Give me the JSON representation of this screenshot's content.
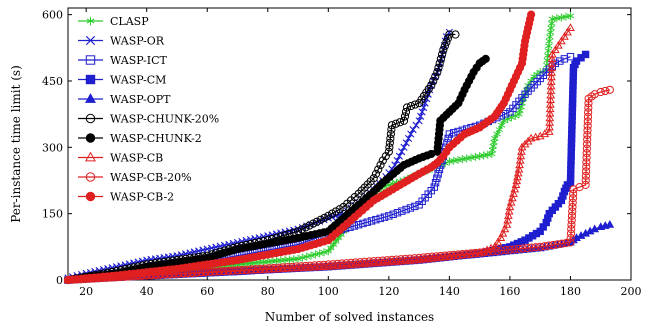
{
  "chart_data": {
    "type": "line",
    "xlabel": "Number of solved instances",
    "ylabel": "Per-instance time limit (s)",
    "xlim": [
      14,
      200
    ],
    "ylim": [
      0,
      615
    ],
    "xticks": [
      20,
      40,
      60,
      80,
      100,
      120,
      140,
      160,
      180,
      200
    ],
    "yticks": [
      0,
      150,
      300,
      450,
      600
    ],
    "grid": false,
    "legend_position": "top-left",
    "series": [
      {
        "name": "CLASP",
        "color": "#2ecc2e",
        "marker": "star",
        "fill": false,
        "points": [
          [
            14,
            0
          ],
          [
            30,
            10
          ],
          [
            50,
            22
          ],
          [
            70,
            35
          ],
          [
            90,
            48
          ],
          [
            100,
            65
          ],
          [
            105,
            110
          ],
          [
            110,
            170
          ],
          [
            115,
            200
          ],
          [
            120,
            215
          ],
          [
            125,
            225
          ],
          [
            130,
            240
          ],
          [
            140,
            268
          ],
          [
            150,
            280
          ],
          [
            154,
            285
          ],
          [
            155,
            320
          ],
          [
            158,
            360
          ],
          [
            163,
            375
          ],
          [
            164,
            400
          ],
          [
            166,
            440
          ],
          [
            168,
            460
          ],
          [
            170,
            470
          ],
          [
            172,
            475
          ],
          [
            173,
            540
          ],
          [
            174,
            590
          ],
          [
            180,
            597
          ]
        ]
      },
      {
        "name": "WASP-OR",
        "color": "#1f1fcf",
        "marker": "x",
        "fill": false,
        "points": [
          [
            14,
            5
          ],
          [
            20,
            15
          ],
          [
            30,
            30
          ],
          [
            40,
            45
          ],
          [
            50,
            55
          ],
          [
            60,
            70
          ],
          [
            70,
            85
          ],
          [
            80,
            100
          ],
          [
            90,
            115
          ],
          [
            100,
            140
          ],
          [
            105,
            150
          ],
          [
            110,
            175
          ],
          [
            115,
            205
          ],
          [
            118,
            225
          ],
          [
            122,
            260
          ],
          [
            125,
            300
          ],
          [
            128,
            340
          ],
          [
            130,
            360
          ],
          [
            132,
            400
          ],
          [
            134,
            440
          ],
          [
            136,
            470
          ],
          [
            137,
            490
          ],
          [
            138,
            520
          ],
          [
            139,
            550
          ],
          [
            140,
            560
          ]
        ]
      },
      {
        "name": "WASP-ICT",
        "color": "#1f1fcf",
        "marker": "square",
        "fill": false,
        "points": [
          [
            14,
            0
          ],
          [
            30,
            15
          ],
          [
            50,
            30
          ],
          [
            70,
            55
          ],
          [
            90,
            80
          ],
          [
            100,
            105
          ],
          [
            110,
            125
          ],
          [
            120,
            145
          ],
          [
            130,
            170
          ],
          [
            135,
            210
          ],
          [
            138,
            280
          ],
          [
            140,
            330
          ],
          [
            150,
            350
          ],
          [
            160,
            380
          ],
          [
            165,
            420
          ],
          [
            172,
            470
          ],
          [
            175,
            490
          ],
          [
            178,
            500
          ],
          [
            180,
            505
          ]
        ]
      },
      {
        "name": "WASP-CM",
        "color": "#1f1fcf",
        "marker": "square",
        "fill": true,
        "points": [
          [
            14,
            0
          ],
          [
            40,
            10
          ],
          [
            70,
            20
          ],
          [
            100,
            30
          ],
          [
            130,
            45
          ],
          [
            150,
            60
          ],
          [
            160,
            75
          ],
          [
            165,
            90
          ],
          [
            170,
            110
          ],
          [
            172,
            130
          ],
          [
            173,
            150
          ],
          [
            175,
            165
          ],
          [
            177,
            180
          ],
          [
            178,
            200
          ],
          [
            179,
            215
          ],
          [
            180,
            220
          ],
          [
            181,
            480
          ],
          [
            182,
            495
          ],
          [
            185,
            510
          ]
        ]
      },
      {
        "name": "WASP-OPT",
        "color": "#1f1fcf",
        "marker": "triangle",
        "fill": true,
        "points": [
          [
            14,
            0
          ],
          [
            40,
            8
          ],
          [
            70,
            18
          ],
          [
            100,
            30
          ],
          [
            130,
            45
          ],
          [
            150,
            58
          ],
          [
            170,
            72
          ],
          [
            180,
            85
          ],
          [
            182,
            95
          ],
          [
            185,
            105
          ],
          [
            188,
            115
          ],
          [
            190,
            120
          ],
          [
            193,
            125
          ]
        ]
      },
      {
        "name": "WASP-CHUNK-20%",
        "color": "#000000",
        "marker": "circle",
        "fill": false,
        "points": [
          [
            14,
            0
          ],
          [
            30,
            20
          ],
          [
            40,
            35
          ],
          [
            60,
            55
          ],
          [
            70,
            75
          ],
          [
            80,
            90
          ],
          [
            90,
            110
          ],
          [
            100,
            145
          ],
          [
            105,
            165
          ],
          [
            110,
            195
          ],
          [
            115,
            230
          ],
          [
            118,
            270
          ],
          [
            120,
            290
          ],
          [
            121,
            350
          ],
          [
            125,
            360
          ],
          [
            126,
            390
          ],
          [
            130,
            400
          ],
          [
            134,
            440
          ],
          [
            136,
            470
          ],
          [
            138,
            520
          ],
          [
            140,
            555
          ],
          [
            142,
            555
          ]
        ]
      },
      {
        "name": "WASP-CHUNK-2",
        "color": "#000000",
        "marker": "circle",
        "fill": true,
        "points": [
          [
            14,
            0
          ],
          [
            30,
            15
          ],
          [
            40,
            30
          ],
          [
            60,
            50
          ],
          [
            70,
            70
          ],
          [
            90,
            95
          ],
          [
            100,
            110
          ],
          [
            110,
            170
          ],
          [
            115,
            200
          ],
          [
            118,
            220
          ],
          [
            125,
            260
          ],
          [
            130,
            275
          ],
          [
            134,
            285
          ],
          [
            136,
            290
          ],
          [
            137,
            360
          ],
          [
            140,
            380
          ],
          [
            143,
            400
          ],
          [
            145,
            430
          ],
          [
            148,
            470
          ],
          [
            150,
            490
          ],
          [
            152,
            500
          ]
        ]
      },
      {
        "name": "WASP-CB",
        "color": "#e02020",
        "marker": "triangle",
        "fill": false,
        "points": [
          [
            14,
            0
          ],
          [
            40,
            10
          ],
          [
            70,
            20
          ],
          [
            100,
            30
          ],
          [
            130,
            45
          ],
          [
            150,
            60
          ],
          [
            155,
            75
          ],
          [
            157,
            95
          ],
          [
            159,
            125
          ],
          [
            160,
            165
          ],
          [
            162,
            215
          ],
          [
            163,
            250
          ],
          [
            164,
            300
          ],
          [
            167,
            320
          ],
          [
            170,
            325
          ],
          [
            173,
            335
          ],
          [
            174,
            510
          ],
          [
            176,
            530
          ],
          [
            178,
            550
          ],
          [
            180,
            570
          ]
        ]
      },
      {
        "name": "WASP-CB-20%",
        "color": "#e02020",
        "marker": "circle",
        "fill": false,
        "points": [
          [
            14,
            0
          ],
          [
            40,
            10
          ],
          [
            70,
            22
          ],
          [
            100,
            35
          ],
          [
            130,
            50
          ],
          [
            150,
            62
          ],
          [
            170,
            75
          ],
          [
            180,
            85
          ],
          [
            181,
            205
          ],
          [
            183,
            210
          ],
          [
            185,
            215
          ],
          [
            186,
            410
          ],
          [
            188,
            420
          ],
          [
            190,
            425
          ],
          [
            193,
            430
          ]
        ]
      },
      {
        "name": "WASP-CB-2",
        "color": "#e02020",
        "marker": "circle",
        "fill": true,
        "points": [
          [
            14,
            0
          ],
          [
            30,
            10
          ],
          [
            50,
            25
          ],
          [
            70,
            45
          ],
          [
            90,
            70
          ],
          [
            100,
            90
          ],
          [
            105,
            120
          ],
          [
            110,
            150
          ],
          [
            115,
            180
          ],
          [
            120,
            200
          ],
          [
            125,
            220
          ],
          [
            130,
            240
          ],
          [
            134,
            255
          ],
          [
            136,
            265
          ],
          [
            138,
            280
          ],
          [
            140,
            300
          ],
          [
            145,
            330
          ],
          [
            150,
            345
          ],
          [
            155,
            370
          ],
          [
            158,
            400
          ],
          [
            160,
            430
          ],
          [
            162,
            460
          ],
          [
            164,
            490
          ],
          [
            165,
            540
          ],
          [
            166,
            570
          ],
          [
            167,
            600
          ]
        ]
      }
    ]
  }
}
